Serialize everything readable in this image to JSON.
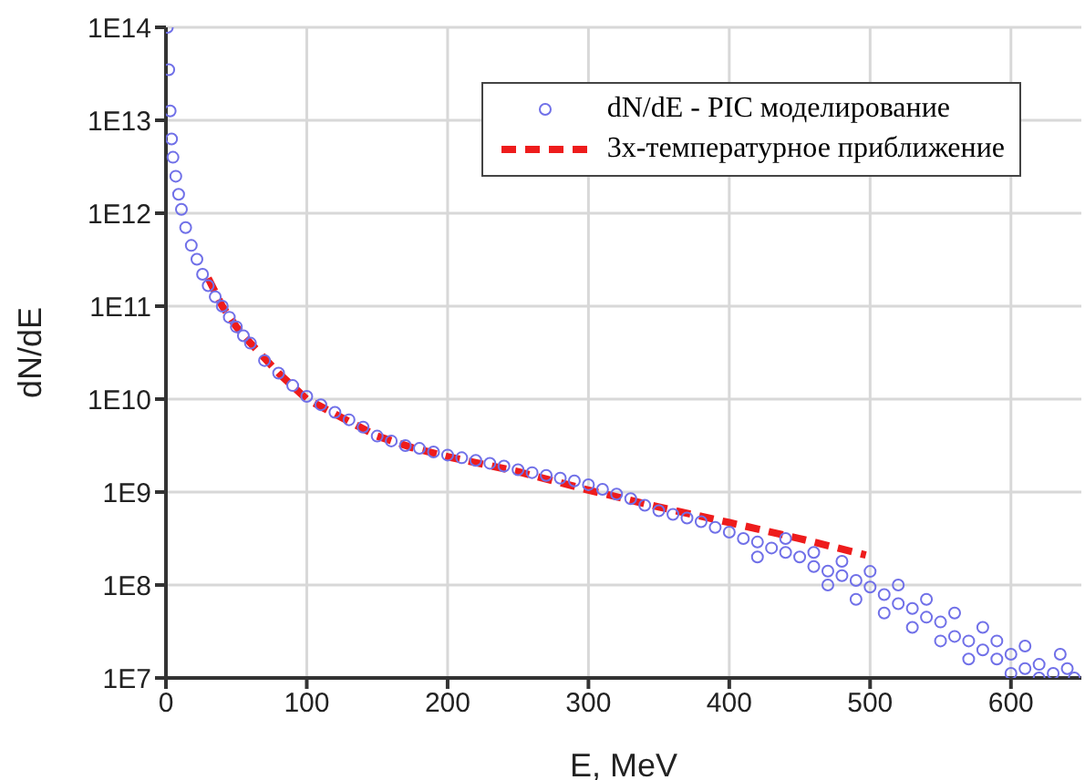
{
  "chart_data": {
    "type": "scatter",
    "xlabel": "E, MeV",
    "ylabel": "dN/dE",
    "log": "y",
    "grid": true,
    "legend": "top right",
    "xlim": [
      0,
      650
    ],
    "xticks": [
      0,
      100,
      200,
      300,
      400,
      500,
      600
    ],
    "ylim": [
      10000000.0,
      100000000000000.0
    ],
    "yticks": [
      {
        "value": 10000000.0,
        "label": "1E7"
      },
      {
        "value": 100000000.0,
        "label": "1E8"
      },
      {
        "value": 1000000000.0,
        "label": "1E9"
      },
      {
        "value": 10000000000.0,
        "label": "1E10"
      },
      {
        "value": 100000000000.0,
        "label": "1E11"
      },
      {
        "value": 1000000000000.0,
        "label": "1E12"
      },
      {
        "value": 10000000000000.0,
        "label": "1E13"
      },
      {
        "value": 100000000000000.0,
        "label": "1E14"
      }
    ],
    "series": [
      {
        "name": "dN/dE - PIC моделирование",
        "marker": "circle",
        "color": "#7070e8",
        "x": [
          1,
          2,
          3,
          4,
          5,
          7,
          9,
          11,
          14,
          18,
          22,
          26,
          30,
          35,
          40,
          45,
          50,
          55,
          60,
          70,
          80,
          90,
          100,
          110,
          120,
          130,
          140,
          150,
          160,
          170,
          180,
          190,
          200,
          210,
          220,
          230,
          240,
          250,
          260,
          270,
          280,
          290,
          300,
          310,
          320,
          330,
          340,
          350,
          360,
          370,
          380,
          390,
          400,
          410,
          420,
          430,
          440,
          450,
          460,
          470,
          480,
          490,
          500,
          510,
          520,
          530,
          540,
          550,
          560,
          570,
          580,
          590,
          600,
          610,
          620,
          630,
          640,
          420,
          440,
          460,
          470,
          480,
          490,
          500,
          510,
          520,
          530,
          540,
          550,
          560,
          570,
          580,
          590,
          600,
          610,
          620,
          635,
          645
        ],
        "values": [
          100000000000000.0,
          35000000000000.0,
          12600000000000.0,
          6300000000000.0,
          4000000000000.0,
          2500000000000.0,
          1600000000000.0,
          1100000000000.0,
          700000000000.0,
          450000000000.0,
          320000000000.0,
          220000000000.0,
          166000000000.0,
          126000000000.0,
          100000000000.0,
          76000000000.0,
          60000000000.0,
          48000000000.0,
          40000000000.0,
          26000000000.0,
          19000000000.0,
          14000000000.0,
          10700000000.0,
          8700000000.0,
          7200000000.0,
          6000000000.0,
          5000000000.0,
          4000000000.0,
          3550000000.0,
          3160000000.0,
          2950000000.0,
          2700000000.0,
          2500000000.0,
          2340000000.0,
          2190000000.0,
          2040000000.0,
          1900000000.0,
          1740000000.0,
          1620000000.0,
          1510000000.0,
          1410000000.0,
          1320000000.0,
          1200000000.0,
          1070000000.0,
          950000000.0,
          850000000.0,
          720000000.0,
          630000000.0,
          575000000.0,
          525000000.0,
          480000000.0,
          417000000.0,
          370000000.0,
          316000000.0,
          290000000.0,
          250000000.0,
          224000000.0,
          200000000.0,
          158000000.0,
          141000000.0,
          126000000.0,
          112000000.0,
          95000000.0,
          79000000.0,
          63000000.0,
          56000000.0,
          45000000.0,
          40000000.0,
          28000000.0,
          25000000.0,
          20000000.0,
          16000000.0,
          18000000.0,
          12600000.0,
          14000000.0,
          11200000.0,
          12600000.0,
          200000000.0,
          316000000.0,
          224000000.0,
          100000000.0,
          180000000.0,
          70000000.0,
          140000000.0,
          50000000.0,
          100000000.0,
          35000000.0,
          70000000.0,
          25000000.0,
          50000000.0,
          16000000.0,
          35000000.0,
          25000000.0,
          11200000.0,
          22000000.0,
          10000000.0,
          18000000.0,
          10000000.0
        ]
      },
      {
        "name": "3х-температурное приближение",
        "type": "line",
        "marker": "none",
        "line_style": "dashed",
        "color": "#ee1c1c",
        "x": [
          30,
          40,
          50,
          60,
          80,
          100,
          125,
          150,
          175,
          200,
          250,
          300,
          350,
          400,
          450,
          497
        ],
        "values": [
          200000000000.0,
          100000000000.0,
          60000000000.0,
          40000000000.0,
          19000000000.0,
          10000000000.0,
          6300000000.0,
          4000000000.0,
          3000000000.0,
          2400000000.0,
          1660000000.0,
          1050000000.0,
          690000000.0,
          470000000.0,
          316000000.0,
          210000000.0
        ]
      }
    ]
  }
}
